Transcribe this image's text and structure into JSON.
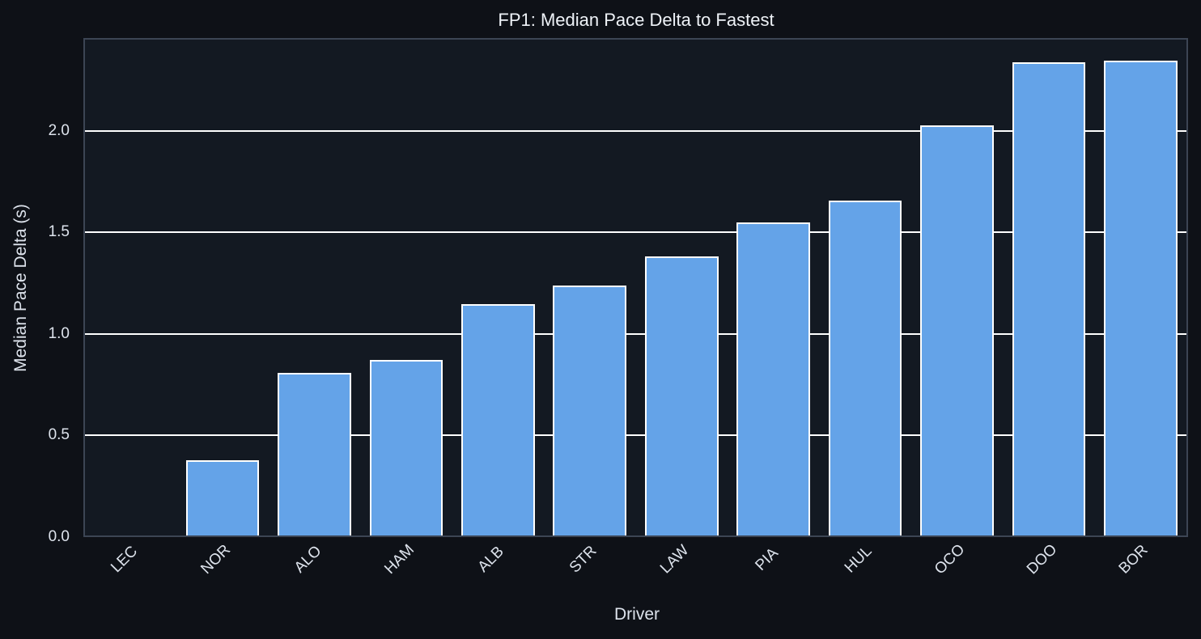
{
  "chart_data": {
    "type": "bar",
    "title": "FP1: Median Pace Delta to Fastest",
    "xlabel": "Driver",
    "ylabel": "Median Pace Delta (s)",
    "categories": [
      "LEC",
      "NOR",
      "ALO",
      "HAM",
      "ALB",
      "STR",
      "LAW",
      "PIA",
      "HUL",
      "OCO",
      "DOO",
      "BOR"
    ],
    "values": [
      0.0,
      0.37,
      0.8,
      0.865,
      1.14,
      1.23,
      1.375,
      1.54,
      1.65,
      2.02,
      2.33,
      2.34
    ],
    "ylim": [
      0,
      2.45
    ],
    "yticks": [
      0.0,
      0.5,
      1.0,
      1.5,
      2.0
    ],
    "ytick_labels": [
      "0.0",
      "0.5",
      "1.0",
      "1.5",
      "2.0"
    ],
    "grid": {
      "y": true,
      "x": false
    },
    "legend": null,
    "colors": {
      "bar_fill": "#64a3e8",
      "bar_edge": "#ffffff",
      "axes_background": "#131922",
      "figure_background": "#0e1117",
      "gridline": "#ffffff",
      "axes_border": "#3c4554",
      "text": "#dde3ec"
    }
  }
}
